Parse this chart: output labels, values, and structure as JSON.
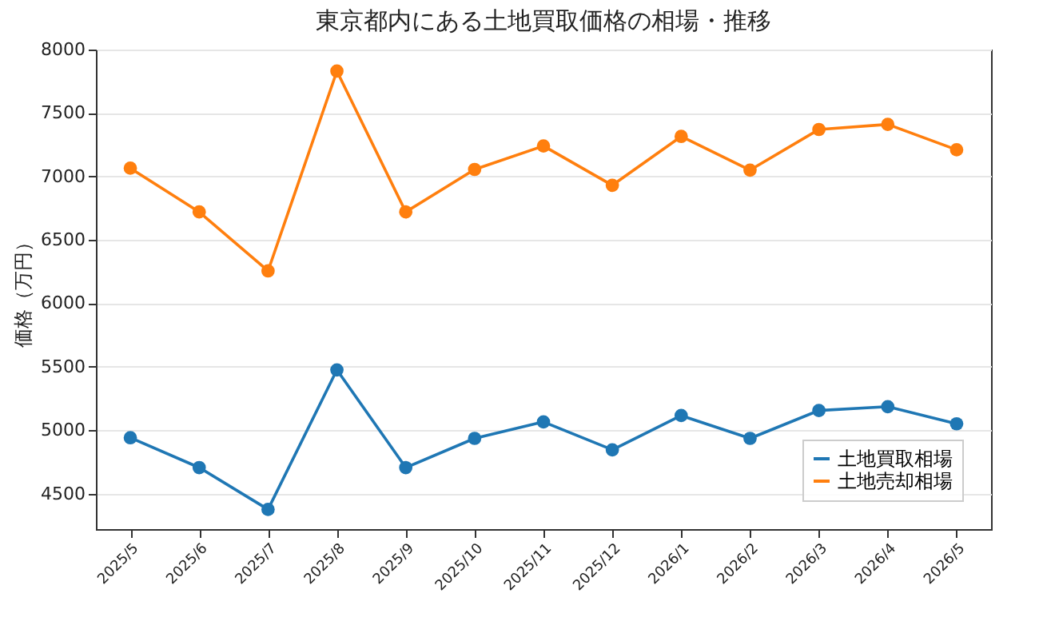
{
  "chart_data": {
    "type": "line",
    "title": "東京都内にある土地買取価格の相場・推移",
    "ylabel": "価格（万円）",
    "categories": [
      "2025/5",
      "2025/6",
      "2025/7",
      "2025/8",
      "2025/9",
      "2025/10",
      "2025/11",
      "2025/12",
      "2026/1",
      "2026/2",
      "2026/3",
      "2026/4",
      "2026/5"
    ],
    "series": [
      {
        "name": "土地買取相場",
        "color": "#1f77b4",
        "values": [
          4940,
          4705,
          4375,
          5475,
          4705,
          4935,
          5065,
          4845,
          5115,
          4935,
          5155,
          5185,
          5050
        ]
      },
      {
        "name": "土地売却相場",
        "color": "#ff7f0e",
        "values": [
          7065,
          6720,
          6255,
          7830,
          6720,
          7055,
          7240,
          6930,
          7315,
          7050,
          7370,
          7410,
          7210
        ]
      }
    ],
    "ylim": [
      4220,
      8000
    ],
    "yticks": [
      4500,
      5000,
      5500,
      6000,
      6500,
      7000,
      7500,
      8000
    ],
    "grid": "y",
    "legend": "bottom right",
    "marker": "circle",
    "line_style": "solid"
  }
}
